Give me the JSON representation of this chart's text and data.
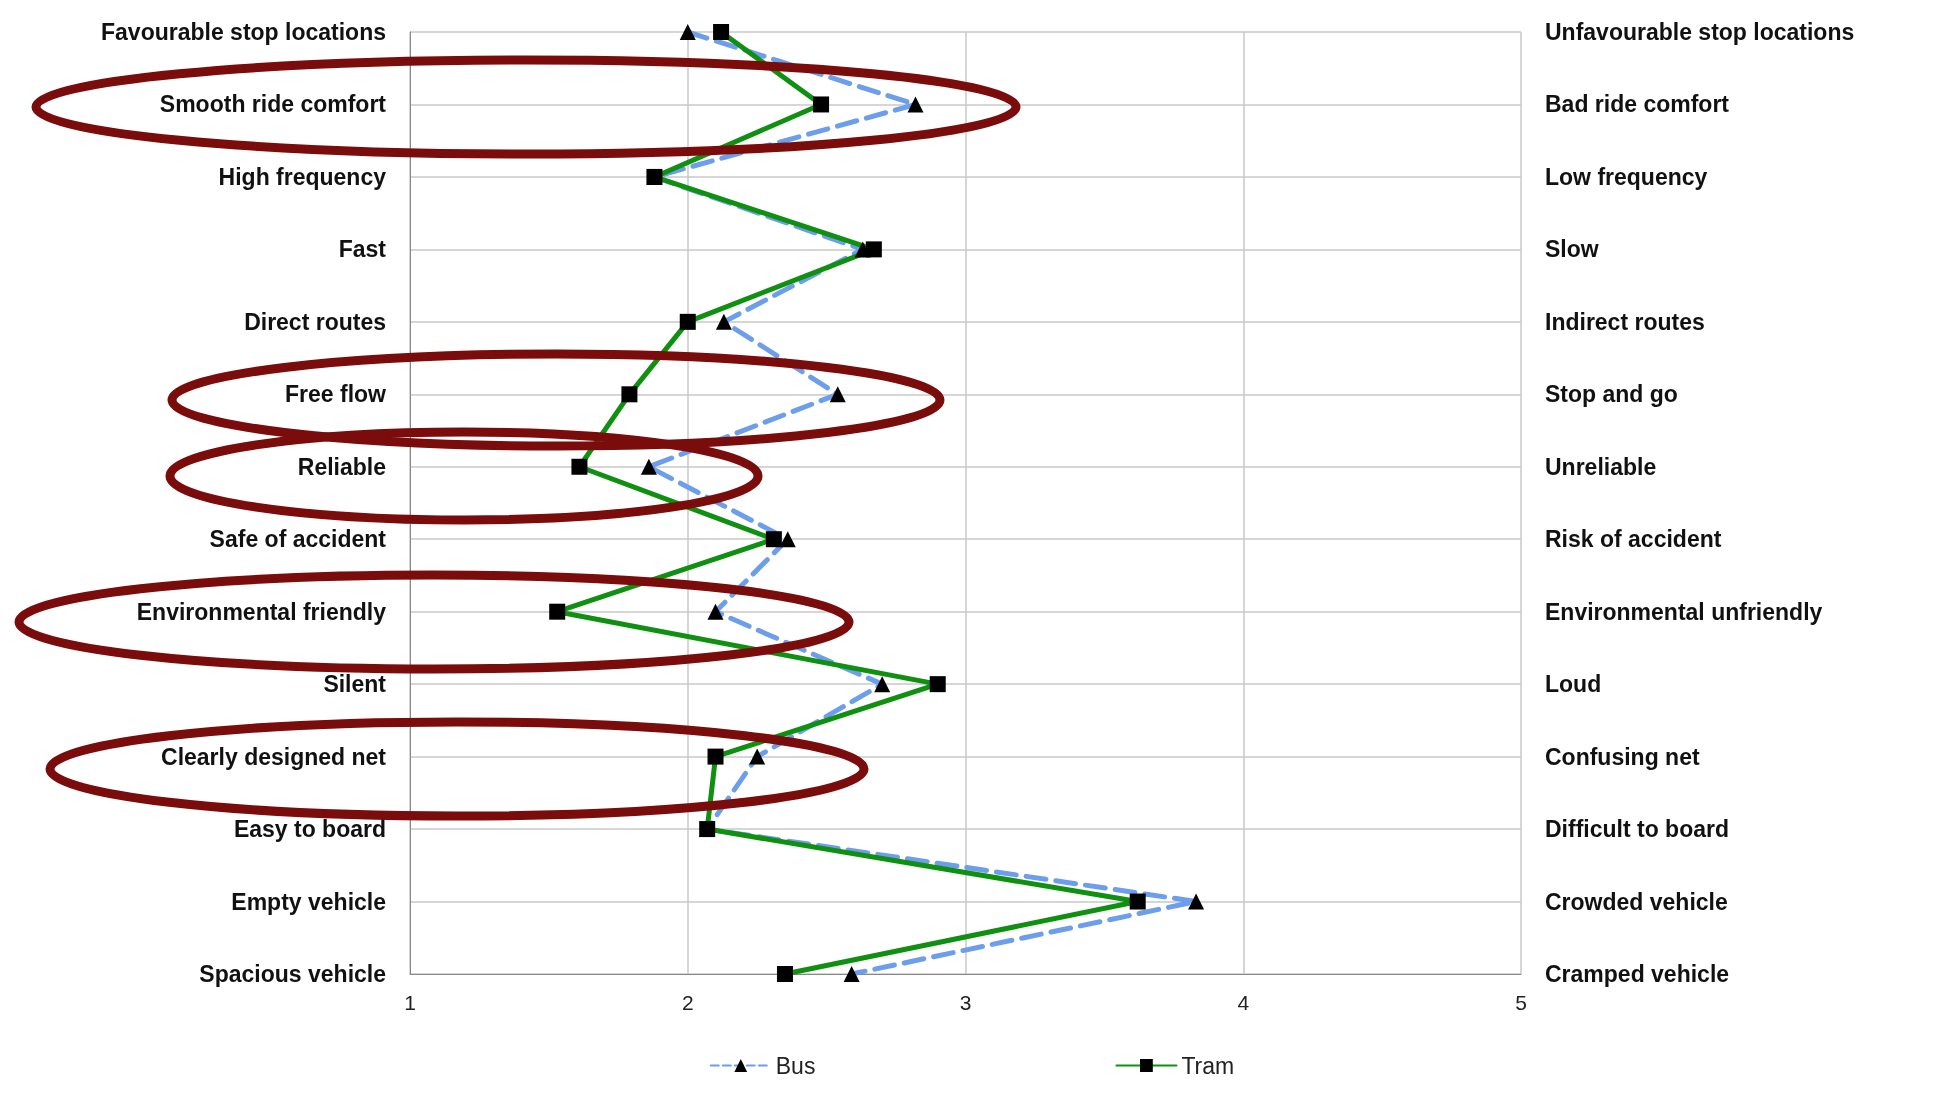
{
  "chart_data": {
    "type": "line",
    "orientation": "horizontal",
    "categories": [
      "Favourable stop locations",
      "Smooth ride comfort",
      "High frequency",
      "Fast",
      "Direct routes",
      "Free flow",
      "Reliable",
      "Safe of accident",
      "Environmental friendly",
      "Silent",
      "Clearly designed net",
      "Easy to board",
      "Empty vehicle",
      "Spacious vehicle"
    ],
    "y2_categories": [
      "Unfavourable stop locations",
      "Bad ride comfort",
      "Low frequency",
      "Slow",
      "Indirect routes",
      "Stop and go",
      "Unreliable",
      "Risk of accident",
      "Environmental unfriendly",
      "Loud",
      "Confusing net",
      "Difficult to board",
      "Crowded vehicle",
      "Cramped vehicle"
    ],
    "series": [
      {
        "name": "Bus",
        "color": "#6d9eeb",
        "marker": "triangle",
        "line_style": "dashed",
        "values": [
          2.0,
          2.82,
          1.88,
          2.63,
          2.13,
          2.54,
          1.86,
          2.36,
          2.1,
          2.7,
          2.25,
          2.07,
          3.83,
          2.59
        ]
      },
      {
        "name": "Tram",
        "color": "#109010",
        "marker": "square",
        "line_style": "solid",
        "values": [
          2.12,
          2.48,
          1.88,
          2.67,
          2.0,
          1.79,
          1.61,
          2.31,
          1.53,
          2.9,
          2.1,
          2.07,
          3.62,
          2.35
        ]
      }
    ],
    "xlim": [
      1,
      5
    ],
    "xticks": [
      1,
      2,
      3,
      4,
      5
    ],
    "grid": true,
    "legend": "bottom"
  }
}
